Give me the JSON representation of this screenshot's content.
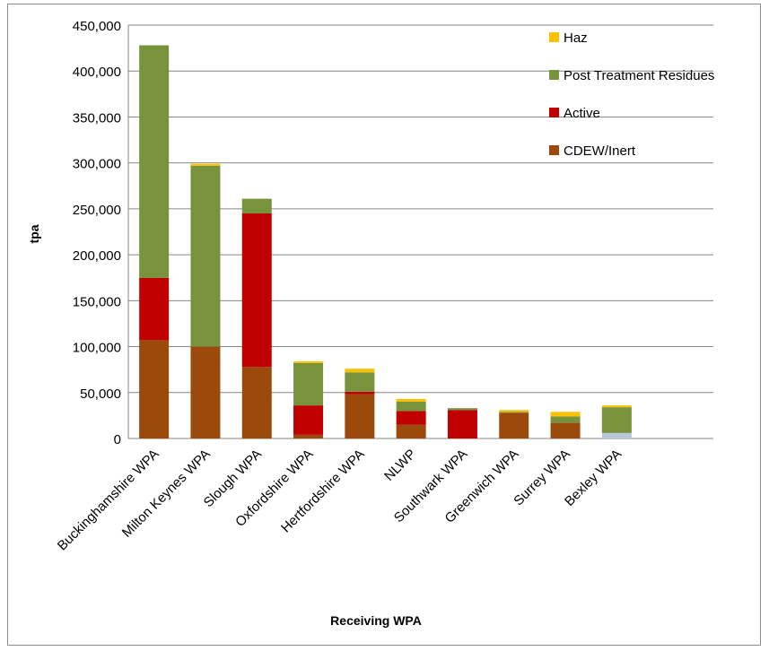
{
  "chart_data": {
    "type": "bar",
    "stacked": true,
    "title": "",
    "xlabel": "Receiving WPA",
    "ylabel": "tpa",
    "ylim": [
      0,
      450000
    ],
    "y_ticks": [
      "0",
      "50,000",
      "100,000",
      "150,000",
      "200,000",
      "250,000",
      "300,000",
      "350,000",
      "400,000",
      "450,000"
    ],
    "grid": true,
    "legend_position": "top-right",
    "categories": [
      "Buckinghamshire WPA",
      "Milton Keynes WPA",
      "Slough WPA",
      "Oxfordshire WPA",
      "Hertfordshire WPA",
      "NLWP",
      "Southwark WPA",
      "Greenwich WPA",
      "Surrey WPA",
      "Bexley WPA"
    ],
    "series": [
      {
        "name": "CDEW/Inert",
        "color": "#9c4a0c",
        "values": [
          107000,
          100000,
          78000,
          4000,
          48000,
          15000,
          0,
          28000,
          17000,
          0
        ]
      },
      {
        "name": "Active",
        "color": "#c00000",
        "values": [
          68000,
          0,
          167000,
          32000,
          3000,
          15000,
          31000,
          0,
          0,
          0
        ]
      },
      {
        "name": "Post Treatment Residues",
        "color": "#77933c",
        "values": [
          253000,
          197000,
          16000,
          46000,
          21000,
          10000,
          2000,
          1000,
          7000,
          28000
        ]
      },
      {
        "name": "Haz",
        "color": "#ffc000",
        "values": [
          0,
          2000,
          0,
          2000,
          4000,
          3000,
          0,
          2000,
          5000,
          2000
        ]
      }
    ],
    "unlabeled_segments": [
      {
        "category": "Bexley WPA",
        "color": "#b7c7dc",
        "values": [
          6000
        ]
      }
    ]
  }
}
